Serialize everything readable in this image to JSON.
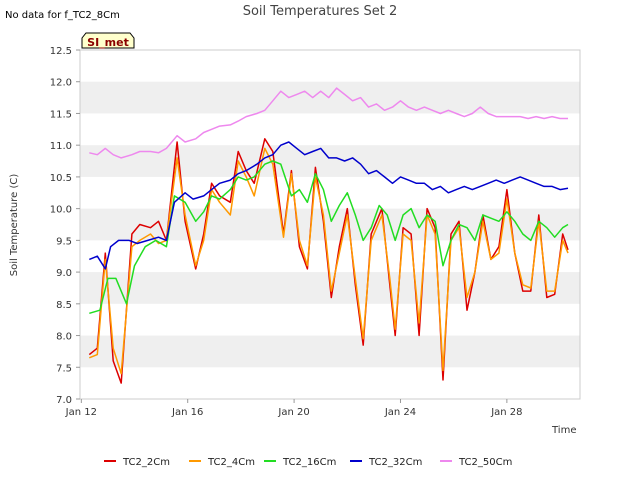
{
  "note": "No data for f_TC2_8Cm",
  "badge": "SI_met",
  "chart_data": {
    "type": "line",
    "title": "Soil Temperatures Set 2",
    "xlabel": "Time",
    "ylabel": "Soil Temperature (C)",
    "ylim": [
      7.0,
      12.5
    ],
    "yticks": [
      "7.0",
      "7.5",
      "8.0",
      "8.5",
      "9.0",
      "9.5",
      "10.0",
      "10.5",
      "11.0",
      "11.5",
      "12.0",
      "12.5"
    ],
    "xlim": [
      "2024-01-12",
      "2024-01-30"
    ],
    "xticks": [
      {
        "label": "Jan 12",
        "day": 12
      },
      {
        "label": "Jan 16",
        "day": 16
      },
      {
        "label": "Jan 20",
        "day": 20
      },
      {
        "label": "Jan 24",
        "day": 24
      },
      {
        "label": "Jan 28",
        "day": 28
      }
    ],
    "grid": "horizontal bands",
    "legend_position": "bottom",
    "series": [
      {
        "name": "TC2_2Cm",
        "color": "#dd0000",
        "points": [
          [
            12.3,
            7.7
          ],
          [
            12.6,
            7.8
          ],
          [
            12.9,
            9.3
          ],
          [
            13.2,
            7.6
          ],
          [
            13.5,
            7.25
          ],
          [
            13.9,
            9.6
          ],
          [
            14.2,
            9.75
          ],
          [
            14.6,
            9.7
          ],
          [
            14.9,
            9.8
          ],
          [
            15.2,
            9.5
          ],
          [
            15.6,
            11.05
          ],
          [
            15.9,
            9.8
          ],
          [
            16.3,
            9.05
          ],
          [
            16.6,
            9.6
          ],
          [
            16.9,
            10.4
          ],
          [
            17.2,
            10.2
          ],
          [
            17.6,
            10.1
          ],
          [
            17.9,
            10.9
          ],
          [
            18.2,
            10.6
          ],
          [
            18.5,
            10.4
          ],
          [
            18.9,
            11.1
          ],
          [
            19.2,
            10.9
          ],
          [
            19.6,
            9.6
          ],
          [
            19.9,
            10.6
          ],
          [
            20.2,
            9.4
          ],
          [
            20.5,
            9.05
          ],
          [
            20.8,
            10.65
          ],
          [
            21.1,
            9.8
          ],
          [
            21.4,
            8.6
          ],
          [
            21.7,
            9.4
          ],
          [
            22.0,
            10.0
          ],
          [
            22.3,
            8.8
          ],
          [
            22.6,
            7.85
          ],
          [
            22.9,
            9.6
          ],
          [
            23.3,
            10.0
          ],
          [
            23.6,
            8.8
          ],
          [
            23.8,
            8.0
          ],
          [
            24.1,
            9.7
          ],
          [
            24.4,
            9.6
          ],
          [
            24.7,
            8.0
          ],
          [
            25.0,
            10.0
          ],
          [
            25.3,
            9.7
          ],
          [
            25.6,
            7.3
          ],
          [
            25.9,
            9.6
          ],
          [
            26.2,
            9.8
          ],
          [
            26.5,
            8.4
          ],
          [
            26.8,
            9.0
          ],
          [
            27.1,
            9.9
          ],
          [
            27.4,
            9.2
          ],
          [
            27.7,
            9.4
          ],
          [
            28.0,
            10.3
          ],
          [
            28.3,
            9.3
          ],
          [
            28.6,
            8.7
          ],
          [
            28.9,
            8.7
          ],
          [
            29.2,
            9.9
          ],
          [
            29.5,
            8.6
          ],
          [
            29.8,
            8.65
          ],
          [
            30.1,
            9.6
          ],
          [
            30.3,
            9.35
          ]
        ]
      },
      {
        "name": "TC2_4Cm",
        "color": "#ff9900",
        "points": [
          [
            12.3,
            7.65
          ],
          [
            12.6,
            7.7
          ],
          [
            12.9,
            9.2
          ],
          [
            13.2,
            7.8
          ],
          [
            13.5,
            7.4
          ],
          [
            13.9,
            9.4
          ],
          [
            14.2,
            9.5
          ],
          [
            14.6,
            9.6
          ],
          [
            14.9,
            9.45
          ],
          [
            15.2,
            9.5
          ],
          [
            15.6,
            10.8
          ],
          [
            15.9,
            9.9
          ],
          [
            16.3,
            9.1
          ],
          [
            16.6,
            9.5
          ],
          [
            16.9,
            10.3
          ],
          [
            17.2,
            10.1
          ],
          [
            17.6,
            9.9
          ],
          [
            17.9,
            10.75
          ],
          [
            18.2,
            10.5
          ],
          [
            18.5,
            10.2
          ],
          [
            18.9,
            10.95
          ],
          [
            19.2,
            10.7
          ],
          [
            19.6,
            9.55
          ],
          [
            19.9,
            10.55
          ],
          [
            20.2,
            9.5
          ],
          [
            20.5,
            9.1
          ],
          [
            20.8,
            10.5
          ],
          [
            21.1,
            9.9
          ],
          [
            21.4,
            8.7
          ],
          [
            21.7,
            9.3
          ],
          [
            22.0,
            9.9
          ],
          [
            22.3,
            8.9
          ],
          [
            22.6,
            7.95
          ],
          [
            22.9,
            9.5
          ],
          [
            23.3,
            9.9
          ],
          [
            23.6,
            8.9
          ],
          [
            23.8,
            8.1
          ],
          [
            24.1,
            9.6
          ],
          [
            24.4,
            9.5
          ],
          [
            24.7,
            8.2
          ],
          [
            25.0,
            9.9
          ],
          [
            25.3,
            9.6
          ],
          [
            25.6,
            7.45
          ],
          [
            25.9,
            9.5
          ],
          [
            26.2,
            9.7
          ],
          [
            26.5,
            8.6
          ],
          [
            26.8,
            9.0
          ],
          [
            27.1,
            9.8
          ],
          [
            27.4,
            9.2
          ],
          [
            27.7,
            9.3
          ],
          [
            28.0,
            10.15
          ],
          [
            28.3,
            9.3
          ],
          [
            28.6,
            8.8
          ],
          [
            28.9,
            8.75
          ],
          [
            29.2,
            9.8
          ],
          [
            29.5,
            8.7
          ],
          [
            29.8,
            8.7
          ],
          [
            30.1,
            9.5
          ],
          [
            30.3,
            9.3
          ]
        ]
      },
      {
        "name": "TC2_16Cm",
        "color": "#22dd22",
        "points": [
          [
            12.3,
            8.35
          ],
          [
            12.7,
            8.4
          ],
          [
            13.0,
            8.9
          ],
          [
            13.3,
            8.9
          ],
          [
            13.7,
            8.5
          ],
          [
            14.0,
            9.1
          ],
          [
            14.4,
            9.4
          ],
          [
            14.8,
            9.5
          ],
          [
            15.2,
            9.4
          ],
          [
            15.5,
            10.2
          ],
          [
            15.9,
            10.1
          ],
          [
            16.3,
            9.8
          ],
          [
            16.6,
            9.95
          ],
          [
            16.9,
            10.2
          ],
          [
            17.2,
            10.15
          ],
          [
            17.6,
            10.3
          ],
          [
            17.9,
            10.5
          ],
          [
            18.2,
            10.45
          ],
          [
            18.5,
            10.5
          ],
          [
            18.9,
            10.7
          ],
          [
            19.2,
            10.75
          ],
          [
            19.5,
            10.7
          ],
          [
            19.9,
            10.2
          ],
          [
            20.2,
            10.3
          ],
          [
            20.5,
            10.1
          ],
          [
            20.8,
            10.55
          ],
          [
            21.1,
            10.3
          ],
          [
            21.4,
            9.8
          ],
          [
            21.7,
            10.05
          ],
          [
            22.0,
            10.25
          ],
          [
            22.3,
            9.9
          ],
          [
            22.6,
            9.5
          ],
          [
            22.9,
            9.7
          ],
          [
            23.2,
            10.05
          ],
          [
            23.5,
            9.9
          ],
          [
            23.8,
            9.5
          ],
          [
            24.1,
            9.9
          ],
          [
            24.4,
            10.0
          ],
          [
            24.7,
            9.7
          ],
          [
            25.0,
            9.9
          ],
          [
            25.3,
            9.8
          ],
          [
            25.6,
            9.1
          ],
          [
            25.9,
            9.5
          ],
          [
            26.2,
            9.75
          ],
          [
            26.5,
            9.7
          ],
          [
            26.8,
            9.5
          ],
          [
            27.1,
            9.9
          ],
          [
            27.4,
            9.85
          ],
          [
            27.7,
            9.8
          ],
          [
            28.0,
            9.95
          ],
          [
            28.3,
            9.8
          ],
          [
            28.6,
            9.6
          ],
          [
            28.9,
            9.5
          ],
          [
            29.2,
            9.8
          ],
          [
            29.5,
            9.7
          ],
          [
            29.8,
            9.55
          ],
          [
            30.1,
            9.7
          ],
          [
            30.3,
            9.75
          ]
        ]
      },
      {
        "name": "TC2_32Cm",
        "color": "#0000cc",
        "points": [
          [
            12.3,
            9.2
          ],
          [
            12.6,
            9.25
          ],
          [
            12.9,
            9.05
          ],
          [
            13.1,
            9.4
          ],
          [
            13.4,
            9.5
          ],
          [
            13.8,
            9.5
          ],
          [
            14.1,
            9.45
          ],
          [
            14.5,
            9.5
          ],
          [
            14.9,
            9.55
          ],
          [
            15.2,
            9.5
          ],
          [
            15.5,
            10.1
          ],
          [
            15.9,
            10.25
          ],
          [
            16.2,
            10.15
          ],
          [
            16.6,
            10.2
          ],
          [
            16.9,
            10.3
          ],
          [
            17.2,
            10.4
          ],
          [
            17.6,
            10.45
          ],
          [
            17.9,
            10.55
          ],
          [
            18.2,
            10.6
          ],
          [
            18.6,
            10.7
          ],
          [
            18.9,
            10.8
          ],
          [
            19.2,
            10.85
          ],
          [
            19.5,
            11.0
          ],
          [
            19.8,
            11.05
          ],
          [
            20.1,
            10.95
          ],
          [
            20.4,
            10.85
          ],
          [
            20.7,
            10.9
          ],
          [
            21.0,
            10.95
          ],
          [
            21.3,
            10.8
          ],
          [
            21.6,
            10.8
          ],
          [
            21.9,
            10.75
          ],
          [
            22.2,
            10.8
          ],
          [
            22.5,
            10.7
          ],
          [
            22.8,
            10.55
          ],
          [
            23.1,
            10.6
          ],
          [
            23.4,
            10.5
          ],
          [
            23.7,
            10.4
          ],
          [
            24.0,
            10.5
          ],
          [
            24.3,
            10.45
          ],
          [
            24.6,
            10.4
          ],
          [
            24.9,
            10.4
          ],
          [
            25.2,
            10.3
          ],
          [
            25.5,
            10.35
          ],
          [
            25.8,
            10.25
          ],
          [
            26.1,
            10.3
          ],
          [
            26.4,
            10.35
          ],
          [
            26.7,
            10.3
          ],
          [
            27.0,
            10.35
          ],
          [
            27.3,
            10.4
          ],
          [
            27.6,
            10.45
          ],
          [
            27.9,
            10.4
          ],
          [
            28.2,
            10.45
          ],
          [
            28.5,
            10.5
          ],
          [
            28.8,
            10.45
          ],
          [
            29.1,
            10.4
          ],
          [
            29.4,
            10.35
          ],
          [
            29.7,
            10.35
          ],
          [
            30.0,
            10.3
          ],
          [
            30.3,
            10.32
          ]
        ]
      },
      {
        "name": "TC2_50Cm",
        "color": "#ee88ee",
        "points": [
          [
            12.3,
            10.88
          ],
          [
            12.6,
            10.85
          ],
          [
            12.9,
            10.95
          ],
          [
            13.2,
            10.85
          ],
          [
            13.5,
            10.8
          ],
          [
            13.9,
            10.85
          ],
          [
            14.2,
            10.9
          ],
          [
            14.6,
            10.9
          ],
          [
            14.9,
            10.88
          ],
          [
            15.2,
            10.95
          ],
          [
            15.6,
            11.15
          ],
          [
            15.9,
            11.05
          ],
          [
            16.3,
            11.1
          ],
          [
            16.6,
            11.2
          ],
          [
            16.9,
            11.25
          ],
          [
            17.2,
            11.3
          ],
          [
            17.6,
            11.32
          ],
          [
            17.9,
            11.38
          ],
          [
            18.2,
            11.45
          ],
          [
            18.6,
            11.5
          ],
          [
            18.9,
            11.55
          ],
          [
            19.2,
            11.7
          ],
          [
            19.5,
            11.85
          ],
          [
            19.8,
            11.75
          ],
          [
            20.1,
            11.8
          ],
          [
            20.4,
            11.85
          ],
          [
            20.7,
            11.75
          ],
          [
            21.0,
            11.85
          ],
          [
            21.3,
            11.75
          ],
          [
            21.6,
            11.9
          ],
          [
            21.9,
            11.8
          ],
          [
            22.2,
            11.7
          ],
          [
            22.5,
            11.75
          ],
          [
            22.8,
            11.6
          ],
          [
            23.1,
            11.65
          ],
          [
            23.4,
            11.55
          ],
          [
            23.7,
            11.6
          ],
          [
            24.0,
            11.7
          ],
          [
            24.3,
            11.6
          ],
          [
            24.6,
            11.55
          ],
          [
            24.9,
            11.6
          ],
          [
            25.2,
            11.55
          ],
          [
            25.5,
            11.5
          ],
          [
            25.8,
            11.55
          ],
          [
            26.1,
            11.5
          ],
          [
            26.4,
            11.45
          ],
          [
            26.7,
            11.5
          ],
          [
            27.0,
            11.6
          ],
          [
            27.3,
            11.5
          ],
          [
            27.6,
            11.45
          ],
          [
            27.9,
            11.45
          ],
          [
            28.2,
            11.45
          ],
          [
            28.5,
            11.45
          ],
          [
            28.8,
            11.42
          ],
          [
            29.1,
            11.45
          ],
          [
            29.4,
            11.42
          ],
          [
            29.7,
            11.45
          ],
          [
            30.0,
            11.42
          ],
          [
            30.3,
            11.42
          ]
        ]
      }
    ]
  }
}
